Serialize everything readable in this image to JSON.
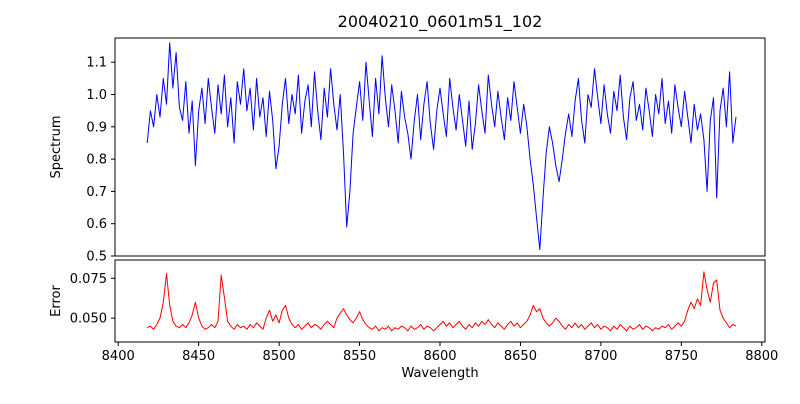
{
  "figure": {
    "title": "20040210_0601m51_102",
    "background": "#ffffff"
  },
  "chart_data": [
    {
      "type": "line",
      "title": "20040210_0601m51_102",
      "ylabel": "Spectrum",
      "line_color": "#0000ff",
      "ylim": [
        0.5,
        1.175
      ],
      "xlim": [
        8398,
        8802
      ],
      "yticks": [
        0.5,
        0.6,
        0.7,
        0.8,
        0.9,
        1.0,
        1.1
      ],
      "ytick_labels": [
        "0.5",
        "0.6",
        "0.7",
        "0.8",
        "0.9",
        "1.0",
        "1.1"
      ],
      "xticks": [
        8400,
        8450,
        8500,
        8550,
        8600,
        8650,
        8700,
        8750,
        8800
      ],
      "x_start": 8418,
      "x_step": 2,
      "values": [
        0.85,
        0.95,
        0.9,
        1.0,
        0.93,
        1.05,
        0.97,
        1.16,
        1.02,
        1.13,
        0.96,
        0.92,
        1.04,
        0.88,
        0.98,
        0.78,
        0.95,
        1.02,
        0.91,
        1.05,
        0.96,
        0.88,
        1.03,
        0.94,
        1.06,
        0.9,
        0.99,
        0.85,
        1.04,
        0.97,
        1.08,
        0.95,
        1.02,
        0.89,
        1.05,
        0.93,
        0.99,
        0.87,
        1.01,
        0.92,
        0.77,
        0.84,
        0.97,
        1.05,
        0.91,
        1.0,
        0.94,
        1.06,
        0.88,
        0.98,
        1.03,
        0.9,
        1.07,
        0.95,
        0.86,
        1.02,
        0.93,
        1.08,
        0.97,
        0.89,
        1.0,
        0.82,
        0.59,
        0.7,
        0.88,
        0.96,
        1.04,
        0.92,
        1.1,
        0.98,
        0.87,
        1.05,
        0.94,
        1.12,
        0.99,
        0.9,
        1.03,
        0.95,
        0.85,
        1.01,
        0.93,
        0.88,
        0.8,
        0.92,
        1.0,
        0.86,
        0.97,
        1.04,
        0.91,
        0.83,
        0.95,
        1.02,
        0.94,
        0.87,
        1.05,
        0.96,
        0.89,
        1.0,
        0.92,
        0.84,
        0.98,
        0.83,
        0.91,
        1.03,
        0.95,
        0.88,
        1.06,
        0.97,
        0.9,
        1.01,
        0.93,
        0.86,
        0.99,
        0.92,
        1.04,
        0.96,
        0.88,
        0.97,
        0.9,
        0.8,
        0.72,
        0.62,
        0.52,
        0.68,
        0.82,
        0.9,
        0.85,
        0.78,
        0.73,
        0.8,
        0.88,
        0.94,
        0.87,
        0.98,
        1.05,
        0.92,
        0.85,
        1.0,
        0.96,
        1.08,
        0.99,
        0.91,
        1.03,
        0.94,
        0.88,
        1.01,
        0.95,
        1.06,
        0.93,
        0.86,
        0.99,
        1.04,
        0.92,
        0.97,
        0.89,
        1.02,
        0.95,
        0.87,
        1.0,
        0.94,
        1.05,
        0.91,
        0.98,
        0.88,
        1.03,
        0.96,
        0.9,
        1.01,
        0.93,
        0.85,
        0.97,
        0.89,
        0.94,
        0.86,
        0.7,
        0.92,
        0.99,
        0.68,
        0.95,
        1.02,
        0.9,
        1.07,
        0.85,
        0.93
      ]
    },
    {
      "type": "line",
      "ylabel": "Error",
      "xlabel": "Wavelength",
      "line_color": "#ff0000",
      "ylim": [
        0.035,
        0.0865
      ],
      "xlim": [
        8398,
        8802
      ],
      "yticks": [
        0.05,
        0.075
      ],
      "ytick_labels": [
        "0.050",
        "0.075"
      ],
      "xticks": [
        8400,
        8450,
        8500,
        8550,
        8600,
        8650,
        8700,
        8750,
        8800
      ],
      "xtick_labels": [
        "8400",
        "8450",
        "8500",
        "8550",
        "8600",
        "8650",
        "8700",
        "8750",
        "8800"
      ],
      "x_start": 8418,
      "x_step": 2,
      "values": [
        0.044,
        0.045,
        0.043,
        0.046,
        0.05,
        0.06,
        0.078,
        0.058,
        0.048,
        0.045,
        0.044,
        0.046,
        0.044,
        0.047,
        0.052,
        0.06,
        0.05,
        0.045,
        0.043,
        0.044,
        0.046,
        0.044,
        0.048,
        0.077,
        0.063,
        0.048,
        0.045,
        0.043,
        0.046,
        0.044,
        0.045,
        0.043,
        0.046,
        0.044,
        0.047,
        0.045,
        0.043,
        0.05,
        0.055,
        0.048,
        0.052,
        0.047,
        0.055,
        0.058,
        0.05,
        0.046,
        0.044,
        0.046,
        0.043,
        0.045,
        0.047,
        0.044,
        0.046,
        0.045,
        0.043,
        0.046,
        0.048,
        0.046,
        0.044,
        0.05,
        0.053,
        0.056,
        0.052,
        0.049,
        0.047,
        0.05,
        0.054,
        0.049,
        0.046,
        0.044,
        0.043,
        0.045,
        0.042,
        0.044,
        0.043,
        0.045,
        0.042,
        0.044,
        0.043,
        0.045,
        0.044,
        0.042,
        0.045,
        0.043,
        0.044,
        0.046,
        0.043,
        0.045,
        0.044,
        0.042,
        0.044,
        0.046,
        0.048,
        0.045,
        0.047,
        0.044,
        0.046,
        0.048,
        0.045,
        0.043,
        0.046,
        0.044,
        0.047,
        0.045,
        0.048,
        0.046,
        0.049,
        0.046,
        0.044,
        0.047,
        0.045,
        0.043,
        0.046,
        0.048,
        0.045,
        0.047,
        0.044,
        0.046,
        0.048,
        0.052,
        0.058,
        0.054,
        0.056,
        0.05,
        0.047,
        0.045,
        0.047,
        0.05,
        0.048,
        0.045,
        0.043,
        0.046,
        0.044,
        0.047,
        0.044,
        0.046,
        0.043,
        0.045,
        0.047,
        0.044,
        0.046,
        0.043,
        0.045,
        0.044,
        0.042,
        0.045,
        0.043,
        0.046,
        0.044,
        0.042,
        0.045,
        0.043,
        0.044,
        0.046,
        0.043,
        0.045,
        0.044,
        0.042,
        0.044,
        0.043,
        0.045,
        0.044,
        0.046,
        0.043,
        0.045,
        0.047,
        0.045,
        0.048,
        0.055,
        0.06,
        0.056,
        0.062,
        0.058,
        0.079,
        0.068,
        0.06,
        0.072,
        0.074,
        0.055,
        0.05,
        0.047,
        0.044,
        0.046,
        0.045
      ]
    }
  ]
}
